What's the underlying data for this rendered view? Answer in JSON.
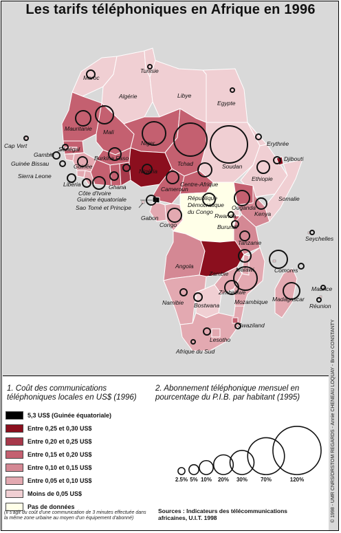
{
  "title": "Les tarifs téléphoniques en Afrique en 1996",
  "colors": {
    "sea": "#d9d9d9",
    "c53": "#000000",
    "c25_30": "#8b0f1e",
    "c20_25": "#a7384a",
    "c15_20": "#c46070",
    "c10_15": "#d48894",
    "c05_10": "#e3a9b1",
    "c00_05": "#f0cfd3",
    "nodata": "#ffffe8"
  },
  "labels": {
    "maroc": "Maroc",
    "tunisie": "Tunisie",
    "algerie": "Algérie",
    "libye": "Libye",
    "egypte": "Egypte",
    "mauritanie": "Mauritanie",
    "mali": "Mali",
    "niger": "Niger",
    "tchad": "Tchad",
    "soudan": "Soudan",
    "erythree": "Erythrée",
    "djibouti": "Djibouti",
    "ethiopie": "Ethiopie",
    "somalie": "Somalie",
    "cap_vert": "Cap Vert",
    "gambie": "Gambie",
    "senegal": "Sénégal",
    "guinee_bissau": "Guinée Bissau",
    "guinee": "Guinée",
    "sierra_leone": "Sierra Leone",
    "liberia": "Libéria",
    "burkina": "Burkina Faso",
    "nigeria": "Nigéria",
    "cote_ivoire": "Côte d'Ivoire",
    "ghana": "Ghana",
    "cameroun": "Cameroun",
    "centrafrique": "Centre-Afrique",
    "guinee_eq": "Guinée équatoriale",
    "sao_tome": "Sao Tomé et Principe",
    "gabon": "Gabon",
    "congo": "Congo",
    "rdc": "République Démocratique du Congo",
    "ouganda": "Ouganda",
    "kenya": "Kenya",
    "rwanda": "Rwanda",
    "burundi": "Burundi",
    "tanzanie": "Tanzanie",
    "seychelles": "Seychelles",
    "angola": "Angola",
    "zambie": "Zambie",
    "malawi": "Malawi",
    "comores": "Comores",
    "zimbabwe": "Zimbabwe",
    "mozambique": "Mozambique",
    "madagascar": "Madagascar",
    "maurice": "Maurice",
    "reunion": "Réunion",
    "namibie": "Namibie",
    "botswana": "Bostwana",
    "swaziland": "Swaziland",
    "lesotho": "Lesotho",
    "afrique_sud": "Afrique du Sud"
  },
  "legend": {
    "heading1": "1. Coût des communications téléphoniques locales en US$ (1996)",
    "heading2": "2. Abonnement téléphonique mensuel en pourcentage du P.I.B. par habitant (1995)",
    "items": [
      {
        "label": "5,3 US$ (Guinée équatoriale)",
        "color": "#000000"
      },
      {
        "label": "Entre 0,25 et 0,30 US$",
        "color": "#8b0f1e"
      },
      {
        "label": "Entre 0,20 et 0,25 US$",
        "color": "#a7384a"
      },
      {
        "label": "Entre 0,15 et 0,20 US$",
        "color": "#c46070"
      },
      {
        "label": "Entre 0,10 et 0,15 US$",
        "color": "#d48894"
      },
      {
        "label": "Entre 0,05 et 0,10 US$",
        "color": "#e3a9b1"
      },
      {
        "label": "Moins de 0,05 US$",
        "color": "#f0cfd3"
      },
      {
        "label": "Pas de données",
        "color": "#ffffe8"
      }
    ],
    "circles": [
      {
        "label": "2.5%",
        "value": 2.5
      },
      {
        "label": "5%",
        "value": 5
      },
      {
        "label": "10%",
        "value": 10
      },
      {
        "label": "20%",
        "value": 20
      },
      {
        "label": "30%",
        "value": 30
      },
      {
        "label": "70%",
        "value": 70
      },
      {
        "label": "120%",
        "value": 120
      }
    ],
    "note": "(Il s'agit du coût d'une communication de 3 minutes effectuée dans la même zone urbaine au moyen d'un équipement d'abonné)",
    "source_line1": "Sources : Indicateurs des télécommunications",
    "source_line2": "africaines, U.I.T. 1998",
    "credit": "© 1998 - UMR CNRS/ORSTOM REGARDS - Annie CHENEAU LOQUAY - Bruno CONSTANTY"
  }
}
